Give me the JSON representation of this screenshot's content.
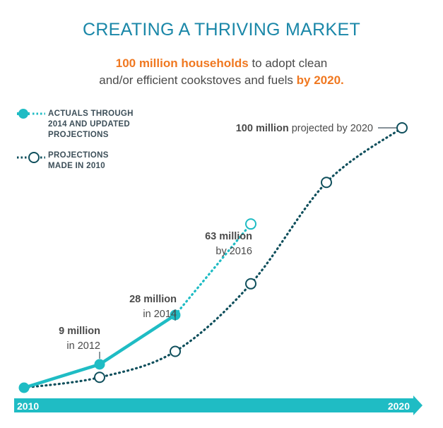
{
  "title": "CREATING A THRIVING MARKET",
  "subtitle": {
    "hl1": "100 million households",
    "t1": " to adopt clean",
    "t2": "and/or efficient cookstoves and fuels ",
    "hl2": "by 2020."
  },
  "legend": [
    {
      "line1": "ACTUALS THROUGH",
      "line2": "2014 AND UPDATED",
      "line3": "PROJECTIONS"
    },
    {
      "line1": "PROJECTIONS",
      "line2": "MADE IN 2010",
      "line3": ""
    }
  ],
  "colors": {
    "actual": "#1fbcc4",
    "projection2010": "#0f4f5c",
    "title": "#1a87a8",
    "highlight": "#f07820",
    "axis": "#1fbcc4"
  },
  "chart_data": {
    "type": "line",
    "xlabel": "",
    "ylabel": "",
    "x_axis_labels": [
      "2010",
      "2020"
    ],
    "xlim": [
      2010,
      2020
    ],
    "ylim": [
      0,
      100
    ],
    "series": [
      {
        "name": "ACTUALS THROUGH 2014 AND UPDATED PROJECTIONS",
        "style": "solid-then-dotted",
        "points": [
          {
            "x": 2010,
            "y": 0,
            "kind": "actual"
          },
          {
            "x": 2012,
            "y": 9,
            "kind": "actual"
          },
          {
            "x": 2014,
            "y": 28,
            "kind": "actual"
          },
          {
            "x": 2016,
            "y": 63,
            "kind": "projected"
          }
        ]
      },
      {
        "name": "PROJECTIONS MADE IN 2010",
        "style": "dotted",
        "points": [
          {
            "x": 2010,
            "y": 0
          },
          {
            "x": 2012,
            "y": 4
          },
          {
            "x": 2014,
            "y": 14
          },
          {
            "x": 2016,
            "y": 40
          },
          {
            "x": 2018,
            "y": 79
          },
          {
            "x": 2020,
            "y": 100
          }
        ]
      }
    ],
    "annotations": [
      {
        "bold": "9 million",
        "text": "in 2012"
      },
      {
        "bold": "28 million",
        "text": "in 2014"
      },
      {
        "bold": "63 million",
        "text": "by 2016"
      },
      {
        "bold": "100 million",
        "text": " projected by 2020"
      }
    ]
  }
}
